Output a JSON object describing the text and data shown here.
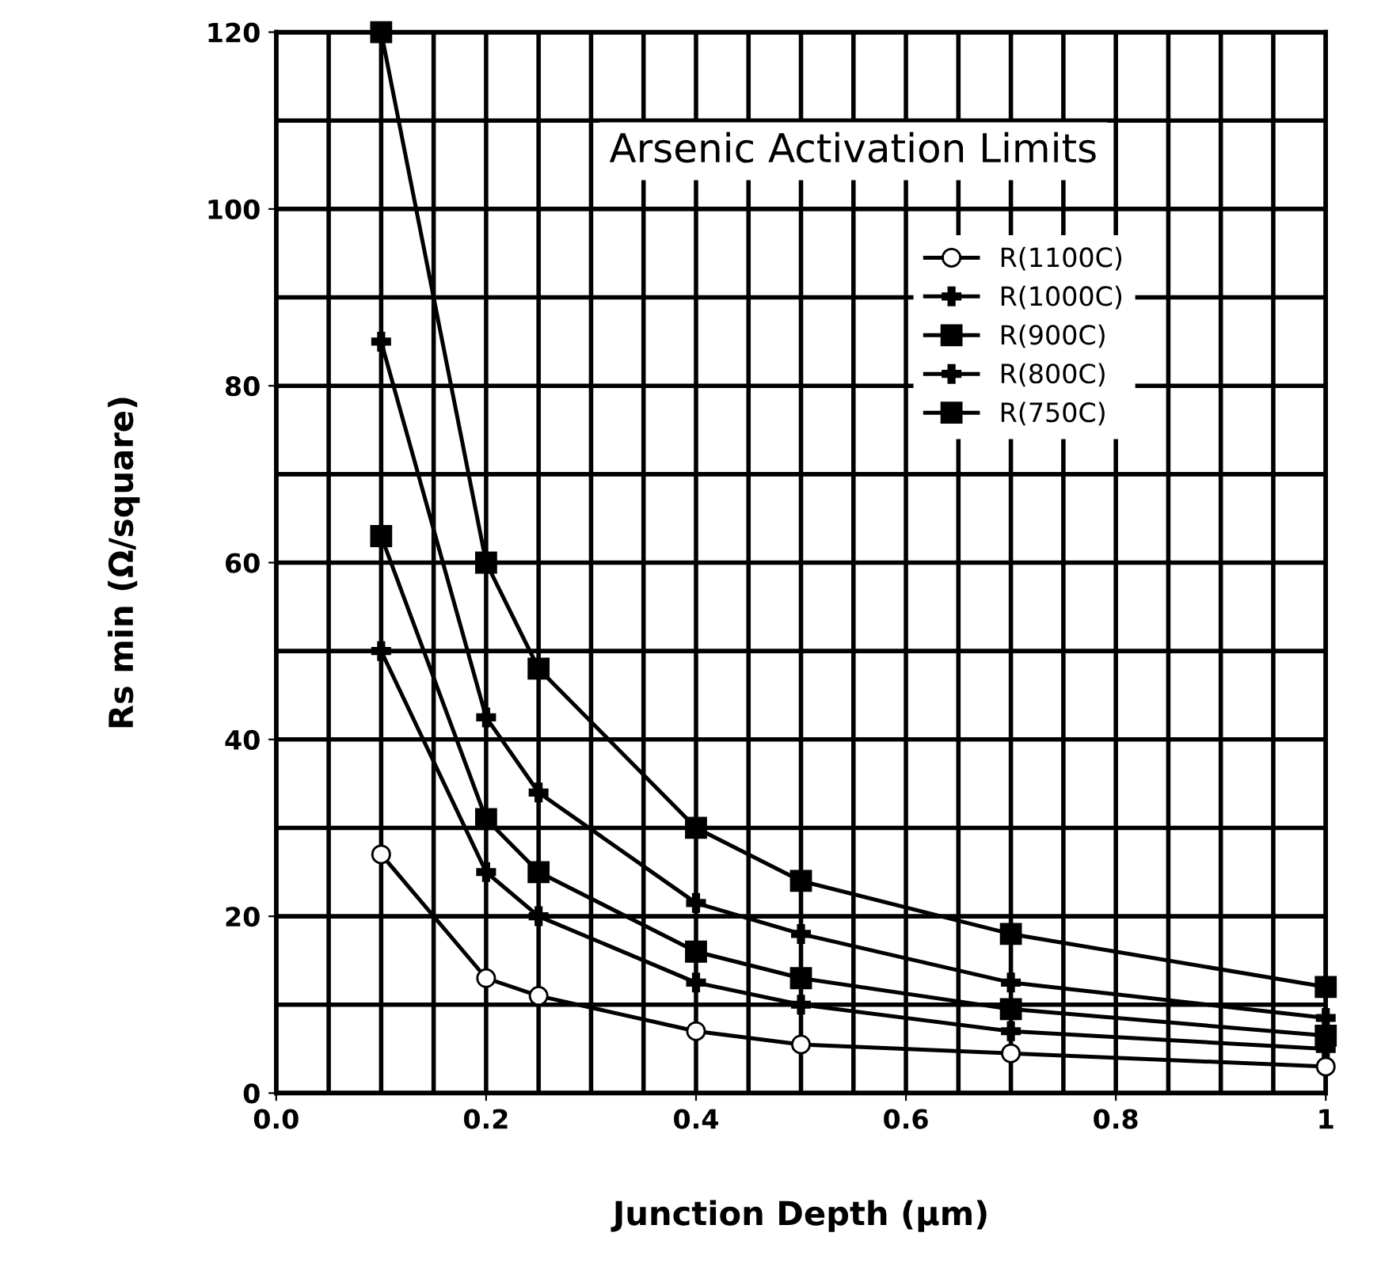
{
  "chart_data": {
    "type": "line",
    "title": "Arsenic Activation Limits",
    "xlabel": "Junction Depth (µm)",
    "ylabel": "Rs min (Ω/square)",
    "xlim": [
      0,
      1.0
    ],
    "xticks": [
      {
        "value": 0,
        "label": "0.0"
      },
      0.2,
      0.4,
      0.6,
      0.8,
      {
        "value": 1.0,
        "label": "1"
      }
    ],
    "ylim": [
      0,
      120
    ],
    "yticks": [
      0,
      20,
      40,
      60,
      80,
      100,
      120
    ],
    "grid": true,
    "legend": "top right",
    "line_style": "solid",
    "series": [
      {
        "name": "R(1100C)",
        "color": "#000000",
        "marker": "circle",
        "x": [
          0.1,
          0.2,
          0.25,
          0.4,
          0.5,
          0.7,
          1.0
        ],
        "values": [
          27,
          13,
          11,
          7,
          5.5,
          4.5,
          3
        ]
      },
      {
        "name": "R(1000C)",
        "color": "#000000",
        "marker": "cross",
        "x": [
          0.1,
          0.2,
          0.25,
          0.4,
          0.5,
          0.7,
          1.0
        ],
        "values": [
          50,
          25,
          20,
          12.5,
          10,
          7,
          5
        ]
      },
      {
        "name": "R(900C)",
        "color": "#000000",
        "marker": "square",
        "x": [
          0.1,
          0.2,
          0.25,
          0.4,
          0.5,
          0.7,
          1.0
        ],
        "values": [
          63,
          31,
          25,
          16,
          13,
          9.5,
          6.5
        ]
      },
      {
        "name": "R(800C)",
        "color": "#000000",
        "marker": "cross",
        "x": [
          0.1,
          0.2,
          0.25,
          0.4,
          0.5,
          0.7,
          1.0
        ],
        "values": [
          85,
          42.5,
          34,
          21.5,
          18,
          12.5,
          8.5
        ]
      },
      {
        "name": "R(750C)",
        "color": "#000000",
        "marker": "square",
        "x": [
          0.1,
          0.2,
          0.25,
          0.4,
          0.5,
          0.7,
          1.0
        ],
        "values": [
          120,
          60,
          48,
          30,
          24,
          18,
          12
        ]
      }
    ]
  }
}
